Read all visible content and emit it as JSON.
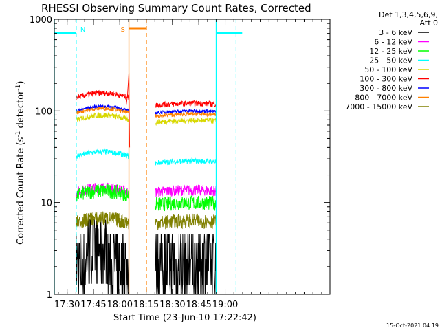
{
  "chart_data": {
    "type": "line",
    "title": "RHESSI Observing Summary Count Rates, Corrected",
    "xlabel": "Start Time (23-Jun-10 17:22:42)",
    "ylabel": "Corrected Count Rate (s⁻¹ detector⁻¹)",
    "ylabel_main": "Corrected Count Rate (s",
    "ylabel_sup1": "-1",
    "ylabel_mid": " detector",
    "ylabel_sup2": "-1",
    "ylabel_end": ")",
    "yscale": "log",
    "ylim": [
      1,
      1000
    ],
    "xlim_minutes": [
      0,
      157
    ],
    "x_ticks": [
      {
        "label": "17:30",
        "minutes": 7.3
      },
      {
        "label": "17:45",
        "minutes": 22.3
      },
      {
        "label": "18:00",
        "minutes": 37.3
      },
      {
        "label": "18:15",
        "minutes": 52.3
      },
      {
        "label": "18:30",
        "minutes": 67.3
      },
      {
        "label": "18:45",
        "minutes": 82.3
      },
      {
        "label": "19:00",
        "minutes": 97.3
      }
    ],
    "y_ticks": [
      {
        "label": "1",
        "value": 1
      },
      {
        "label": "10",
        "value": 10
      },
      {
        "label": "100",
        "value": 100
      },
      {
        "label": "1000",
        "value": 1000
      }
    ],
    "legend_header": [
      "Det 1,3,4,5,6,9,",
      "Att 0"
    ],
    "legend_position": "top-right",
    "segments": [
      [
        12.5,
        42.5
      ],
      [
        57.5,
        92.2
      ]
    ],
    "series": [
      {
        "name": "3 - 6 keV",
        "color": "#000000",
        "level_a": 4.0,
        "level_b": 2.0,
        "noise": 0.3
      },
      {
        "name": "6 - 12 keV",
        "color": "#ff00ff",
        "level_a": 13,
        "level_b": 13,
        "noise": 0.06
      },
      {
        "name": "12 - 25 keV",
        "color": "#00ff00",
        "level_a": 12,
        "level_b": 9.5,
        "noise": 0.08
      },
      {
        "name": "25 - 50 keV",
        "color": "#00ffff",
        "level_a": 32,
        "level_b": 27,
        "noise": 0.03
      },
      {
        "name": "50 - 100 keV",
        "color": "#d8d800",
        "level_a": 80,
        "level_b": 75,
        "noise": 0.03
      },
      {
        "name": "100 - 300 keV",
        "color": "#ff0000",
        "level_a": 140,
        "level_b": 115,
        "noise": 0.03
      },
      {
        "name": "300 - 800 keV",
        "color": "#0000ff",
        "level_a": 100,
        "level_b": 95,
        "noise": 0.02
      },
      {
        "name": "800 - 7000 keV",
        "color": "#ff8000",
        "level_a": 95,
        "level_b": 88,
        "noise": 0.02
      },
      {
        "name": "7000 - 15000 keV",
        "color": "#808000",
        "level_a": 6,
        "level_b": 6,
        "noise": 0.08
      }
    ],
    "annotations": [
      {
        "label": "N",
        "color": "#00ffff",
        "x_minutes": 12.5,
        "type": "night"
      },
      {
        "label": "S",
        "color": "#ff8000",
        "x_minutes": 42.5,
        "type": "saa"
      }
    ],
    "night_bars": [
      [
        0,
        12.5
      ],
      [
        92.2,
        107
      ]
    ],
    "saa_bar": [
      42.5,
      52.5
    ],
    "dashed_markers": [
      {
        "color": "#00ffff",
        "x_minutes": 12.5
      },
      {
        "color": "#00ffff",
        "x_minutes": 103.5
      },
      {
        "color": "#ff8000",
        "x_minutes": 52.5
      }
    ],
    "solid_markers": [
      {
        "color": "#00ffff",
        "x_minutes": 0
      },
      {
        "color": "#00ffff",
        "x_minutes": 92.2
      },
      {
        "color": "#ff8000",
        "x_minutes": 42.5
      }
    ],
    "timestamp": "15-Oct-2021 04:19"
  }
}
